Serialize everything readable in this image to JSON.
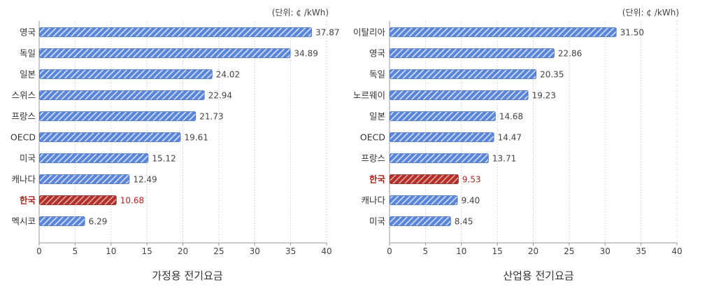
{
  "chart_data": [
    {
      "type": "bar",
      "orientation": "horizontal",
      "title": "가정용 전기요금",
      "unit_label": "(단위: ¢ /kWh)",
      "categories": [
        "영국",
        "독일",
        "일본",
        "스위스",
        "프랑스",
        "OECD",
        "미국",
        "캐나다",
        "한국",
        "멕시코"
      ],
      "values": [
        37.87,
        34.89,
        24.02,
        22.94,
        21.73,
        19.61,
        15.12,
        12.49,
        10.68,
        6.29
      ],
      "value_labels": [
        "37.87",
        "34.89",
        "24.02",
        "22.94",
        "21.73",
        "19.61",
        "15.12",
        "12.49",
        "10.68",
        "6.29"
      ],
      "highlight": "한국",
      "xlim": [
        0,
        40
      ],
      "xticks": [
        0,
        5,
        10,
        15,
        20,
        25,
        30,
        35,
        40
      ],
      "grid": "vertical-dotted",
      "colors": {
        "bar": "#5b86d8",
        "highlight": "#b3302a",
        "highlight_text": "#a8261f"
      }
    },
    {
      "type": "bar",
      "orientation": "horizontal",
      "title": "산업용 전기요금",
      "unit_label": "(단위: ¢ /kWh)",
      "categories": [
        "이탈리아",
        "영국",
        "독일",
        "노르웨이",
        "일본",
        "OECD",
        "프랑스",
        "한국",
        "캐나다",
        "미국"
      ],
      "values": [
        31.5,
        22.86,
        20.35,
        19.23,
        14.68,
        14.47,
        13.71,
        9.53,
        9.4,
        8.45
      ],
      "value_labels": [
        "31.50",
        "22.86",
        "20.35",
        "19.23",
        "14.68",
        "14.47",
        "13.71",
        "9.53",
        "9.40",
        "8.45"
      ],
      "highlight": "한국",
      "xlim": [
        0,
        40
      ],
      "xticks": [
        0,
        5,
        10,
        15,
        20,
        25,
        30,
        35,
        40
      ],
      "grid": "vertical-dotted",
      "colors": {
        "bar": "#5b86d8",
        "highlight": "#b3302a",
        "highlight_text": "#a8261f"
      }
    }
  ]
}
